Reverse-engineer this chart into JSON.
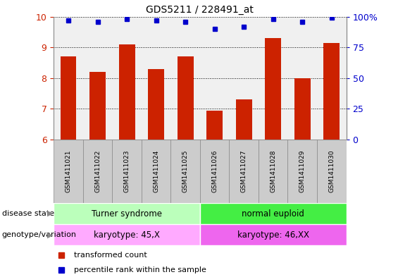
{
  "title": "GDS5211 / 228491_at",
  "samples": [
    "GSM1411021",
    "GSM1411022",
    "GSM1411023",
    "GSM1411024",
    "GSM1411025",
    "GSM1411026",
    "GSM1411027",
    "GSM1411028",
    "GSM1411029",
    "GSM1411030"
  ],
  "transformed_count": [
    8.7,
    8.2,
    9.1,
    8.3,
    8.7,
    6.95,
    7.3,
    9.3,
    8.0,
    9.15
  ],
  "percentile_rank": [
    97,
    96,
    98,
    97,
    96,
    90,
    92,
    98,
    96,
    99
  ],
  "ylim": [
    6,
    10
  ],
  "yticks": [
    6,
    7,
    8,
    9,
    10
  ],
  "y_right_ticks": [
    0,
    25,
    50,
    75,
    100
  ],
  "y_right_labels": [
    "0",
    "25",
    "50",
    "75",
    "100%"
  ],
  "bar_color": "#cc2200",
  "dot_color": "#0000cc",
  "disease_state_groups": [
    {
      "label": "Turner syndrome",
      "start": 0,
      "end": 5,
      "color": "#bbffbb"
    },
    {
      "label": "normal euploid",
      "start": 5,
      "end": 10,
      "color": "#44ee44"
    }
  ],
  "genotype_groups": [
    {
      "label": "karyotype: 45,X",
      "start": 0,
      "end": 5,
      "color": "#ffaaff"
    },
    {
      "label": "karyotype: 46,XX",
      "start": 5,
      "end": 10,
      "color": "#ee66ee"
    }
  ],
  "legend_items": [
    {
      "label": "transformed count",
      "color": "#cc2200"
    },
    {
      "label": "percentile rank within the sample",
      "color": "#0000cc"
    }
  ],
  "label_disease_state": "disease state",
  "label_genotype": "genotype/variation",
  "tick_label_color": "#cc2200",
  "right_axis_color": "#0000cc",
  "sample_box_color": "#cccccc",
  "sample_box_edge": "#888888"
}
